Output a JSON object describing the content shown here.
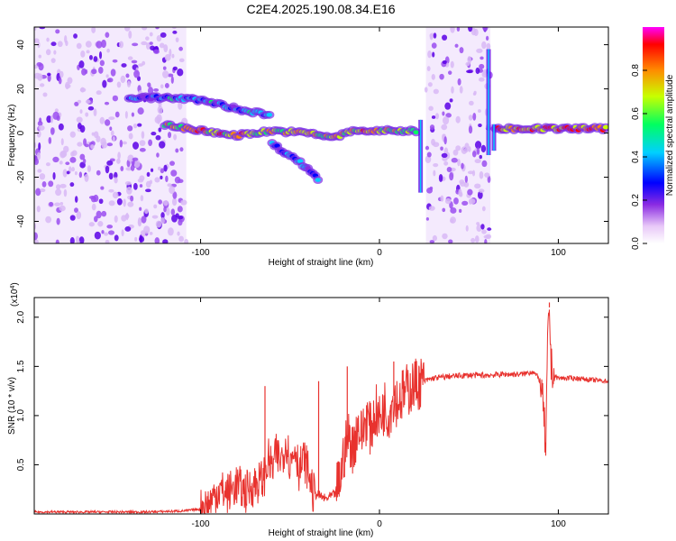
{
  "title": "C2E4.2025.190.08.34.E16",
  "chart_data": [
    {
      "type": "heatmap",
      "xlabel": "Height of straight line (km)",
      "ylabel": "Frequency (Hz)",
      "xlim": [
        -193,
        128
      ],
      "ylim": [
        -50,
        48
      ],
      "xticks": [
        -100,
        0,
        100
      ],
      "yticks": [
        40,
        20,
        0,
        -20,
        -40
      ],
      "colorbar": {
        "label": "Normalized spectral amplitude",
        "range": [
          0.0,
          1.0
        ],
        "ticks": [
          "0.0",
          "0.2",
          "0.4",
          "0.6",
          "0.8"
        ]
      },
      "noise_regions": [
        [
          -193,
          -108
        ],
        [
          26,
          62
        ]
      ],
      "features": [
        {
          "name": "main-track",
          "points": [
            [
              -120,
              4
            ],
            [
              -100,
              1
            ],
            [
              -80,
              -1
            ],
            [
              -60,
              1
            ],
            [
              -40,
              0
            ],
            [
              -25,
              -2
            ],
            [
              -15,
              1
            ],
            [
              0,
              1
            ],
            [
              22,
              1
            ]
          ],
          "amplitude": 0.8
        },
        {
          "name": "upper-track",
          "points": [
            [
              -140,
              16
            ],
            [
              -120,
              16
            ],
            [
              -100,
              15
            ],
            [
              -80,
              11
            ],
            [
              -60,
              8
            ]
          ],
          "amplitude": 0.45
        },
        {
          "name": "lower-branch",
          "points": [
            [
              -60,
              -5
            ],
            [
              -50,
              -10
            ],
            [
              -40,
              -16
            ],
            [
              -33,
              -22
            ]
          ],
          "amplitude": 0.4
        },
        {
          "name": "right-track",
          "points": [
            [
              65,
              2
            ],
            [
              90,
              2
            ],
            [
              128,
              2
            ]
          ],
          "amplitude": 0.9
        }
      ]
    },
    {
      "type": "line",
      "xlabel": "Height of straight line (km)",
      "ylabel": "SNR (10 * v/v)",
      "y_multiplier": "(x10^4)",
      "xlim": [
        -193,
        128
      ],
      "ylim": [
        0,
        2.2
      ],
      "xticks": [
        -100,
        0,
        100
      ],
      "yticks": [
        0.5,
        1.0,
        1.5,
        2.0
      ],
      "series": [
        {
          "color": "#e8322e",
          "x": [
            -193,
            -160,
            -130,
            -110,
            -100,
            -95,
            -90,
            -85,
            -80,
            -75,
            -70,
            -65,
            -62,
            -60,
            -58,
            -55,
            -52,
            -50,
            -47,
            -45,
            -42,
            -40,
            -37,
            -35,
            -30,
            -25,
            -22,
            -20,
            -17,
            -15,
            -12,
            -10,
            -7,
            -5,
            -2,
            0,
            3,
            5,
            8,
            10,
            15,
            20,
            25,
            30,
            40,
            50,
            60,
            70,
            80,
            86,
            90,
            92,
            93,
            94,
            95,
            96,
            98,
            100,
            110,
            120,
            128
          ],
          "y": [
            0.02,
            0.02,
            0.02,
            0.03,
            0.05,
            0.1,
            0.25,
            0.2,
            0.3,
            0.22,
            0.3,
            0.35,
            0.55,
            0.45,
            0.6,
            0.55,
            0.75,
            0.5,
            0.7,
            0.45,
            0.55,
            0.45,
            0.2,
            0.2,
            0.15,
            0.2,
            0.35,
            0.6,
            0.8,
            0.65,
            0.9,
            0.8,
            1.0,
            0.85,
            1.05,
            0.95,
            1.1,
            1.0,
            1.2,
            1.15,
            1.25,
            1.32,
            1.35,
            1.38,
            1.4,
            1.41,
            1.41,
            1.42,
            1.42,
            1.45,
            1.35,
            1.0,
            0.55,
            1.7,
            2.1,
            1.5,
            1.4,
            1.38,
            1.38,
            1.36,
            1.35
          ]
        }
      ],
      "annotations": [
        {
          "x": -64,
          "y": 1.3
        },
        {
          "x": -34,
          "y": 1.35
        },
        {
          "x": -18,
          "y": 1.5
        },
        {
          "x": 8,
          "y": 1.55
        },
        {
          "x": 95,
          "y": 2.15
        }
      ]
    }
  ]
}
